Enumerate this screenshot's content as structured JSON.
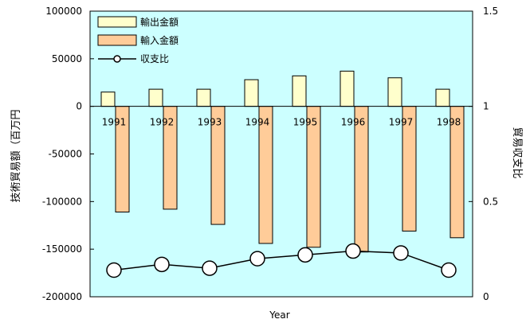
{
  "chart_data": {
    "type": "bar",
    "title": "",
    "xlabel": "Year",
    "ylabel": "技術貿易額（百万円",
    "y2label": "貿易収支比",
    "categories": [
      "1991",
      "1992",
      "1993",
      "1994",
      "1995",
      "1996",
      "1997",
      "1998"
    ],
    "ylim": [
      -200000,
      100000
    ],
    "y_ticks": [
      100000,
      50000,
      0,
      -50000,
      -100000,
      -150000,
      -200000
    ],
    "y2lim": [
      0,
      1.5
    ],
    "y2_ticks": [
      1.5,
      1,
      0.5,
      0
    ],
    "plot_background": "#ccffff",
    "grid": false,
    "legend_position": "top-left",
    "series": [
      {
        "name": "輸出金額",
        "type": "bar",
        "color": "#ffffcc",
        "axis": "left",
        "values": [
          15000,
          18000,
          18000,
          28000,
          32000,
          37000,
          30000,
          18000
        ]
      },
      {
        "name": "輸入金額",
        "type": "bar",
        "color": "#ffcc99",
        "axis": "left",
        "values": [
          -111000,
          -108000,
          -124000,
          -144000,
          -148000,
          -153000,
          -131000,
          -138000
        ]
      },
      {
        "name": "収支比",
        "type": "line",
        "color": "#000000",
        "marker": "circle",
        "axis": "right",
        "values": [
          0.14,
          0.17,
          0.15,
          0.2,
          0.22,
          0.24,
          0.23,
          0.14
        ]
      }
    ]
  }
}
